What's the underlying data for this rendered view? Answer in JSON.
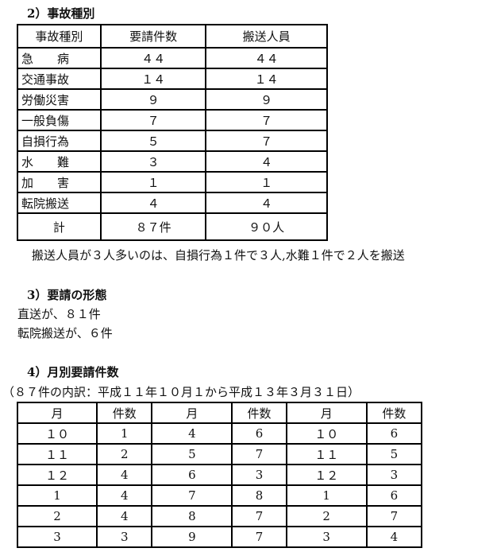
{
  "section2": {
    "title": "2）事故種別",
    "headers": [
      "事故種別",
      "要請件数",
      "搬送人員"
    ],
    "rows": [
      [
        "急　　病",
        "４４",
        "４４"
      ],
      [
        "交通事故",
        "１４",
        "１４"
      ],
      [
        "労働災害",
        "９",
        "９"
      ],
      [
        "一般負傷",
        "７",
        "７"
      ],
      [
        "自損行為",
        "５",
        "７"
      ],
      [
        "水　　難",
        "３",
        "４"
      ],
      [
        "加　　害",
        "１",
        "１"
      ],
      [
        "転院搬送",
        "４",
        "４"
      ],
      [
        "計",
        "８７件",
        "９０人"
      ]
    ],
    "note": "搬送人員が３人多いのは、自損行為１件で３人,水難１件で２人を搬送"
  },
  "section3": {
    "title": "3）要請の形態",
    "lines": [
      "直送が、８１件",
      "転院搬送が、６件"
    ]
  },
  "section4": {
    "title": "4）月別要請件数",
    "subtitle": "（８７件の内訳：平成１１年１０月１から平成１３年３月３１日）",
    "headers": [
      "月",
      "件数",
      "月",
      "件数",
      "月",
      "件数"
    ],
    "rows": [
      [
        "１０",
        "1",
        "4",
        "6",
        "１０",
        "6"
      ],
      [
        "１１",
        "2",
        "5",
        "7",
        "１１",
        "5"
      ],
      [
        "１２",
        "4",
        "6",
        "3",
        "１２",
        "3"
      ],
      [
        "1",
        "4",
        "7",
        "8",
        "1",
        "6"
      ],
      [
        "2",
        "4",
        "8",
        "7",
        "2",
        "7"
      ],
      [
        "3",
        "3",
        "9",
        "7",
        "3",
        "4"
      ]
    ]
  }
}
